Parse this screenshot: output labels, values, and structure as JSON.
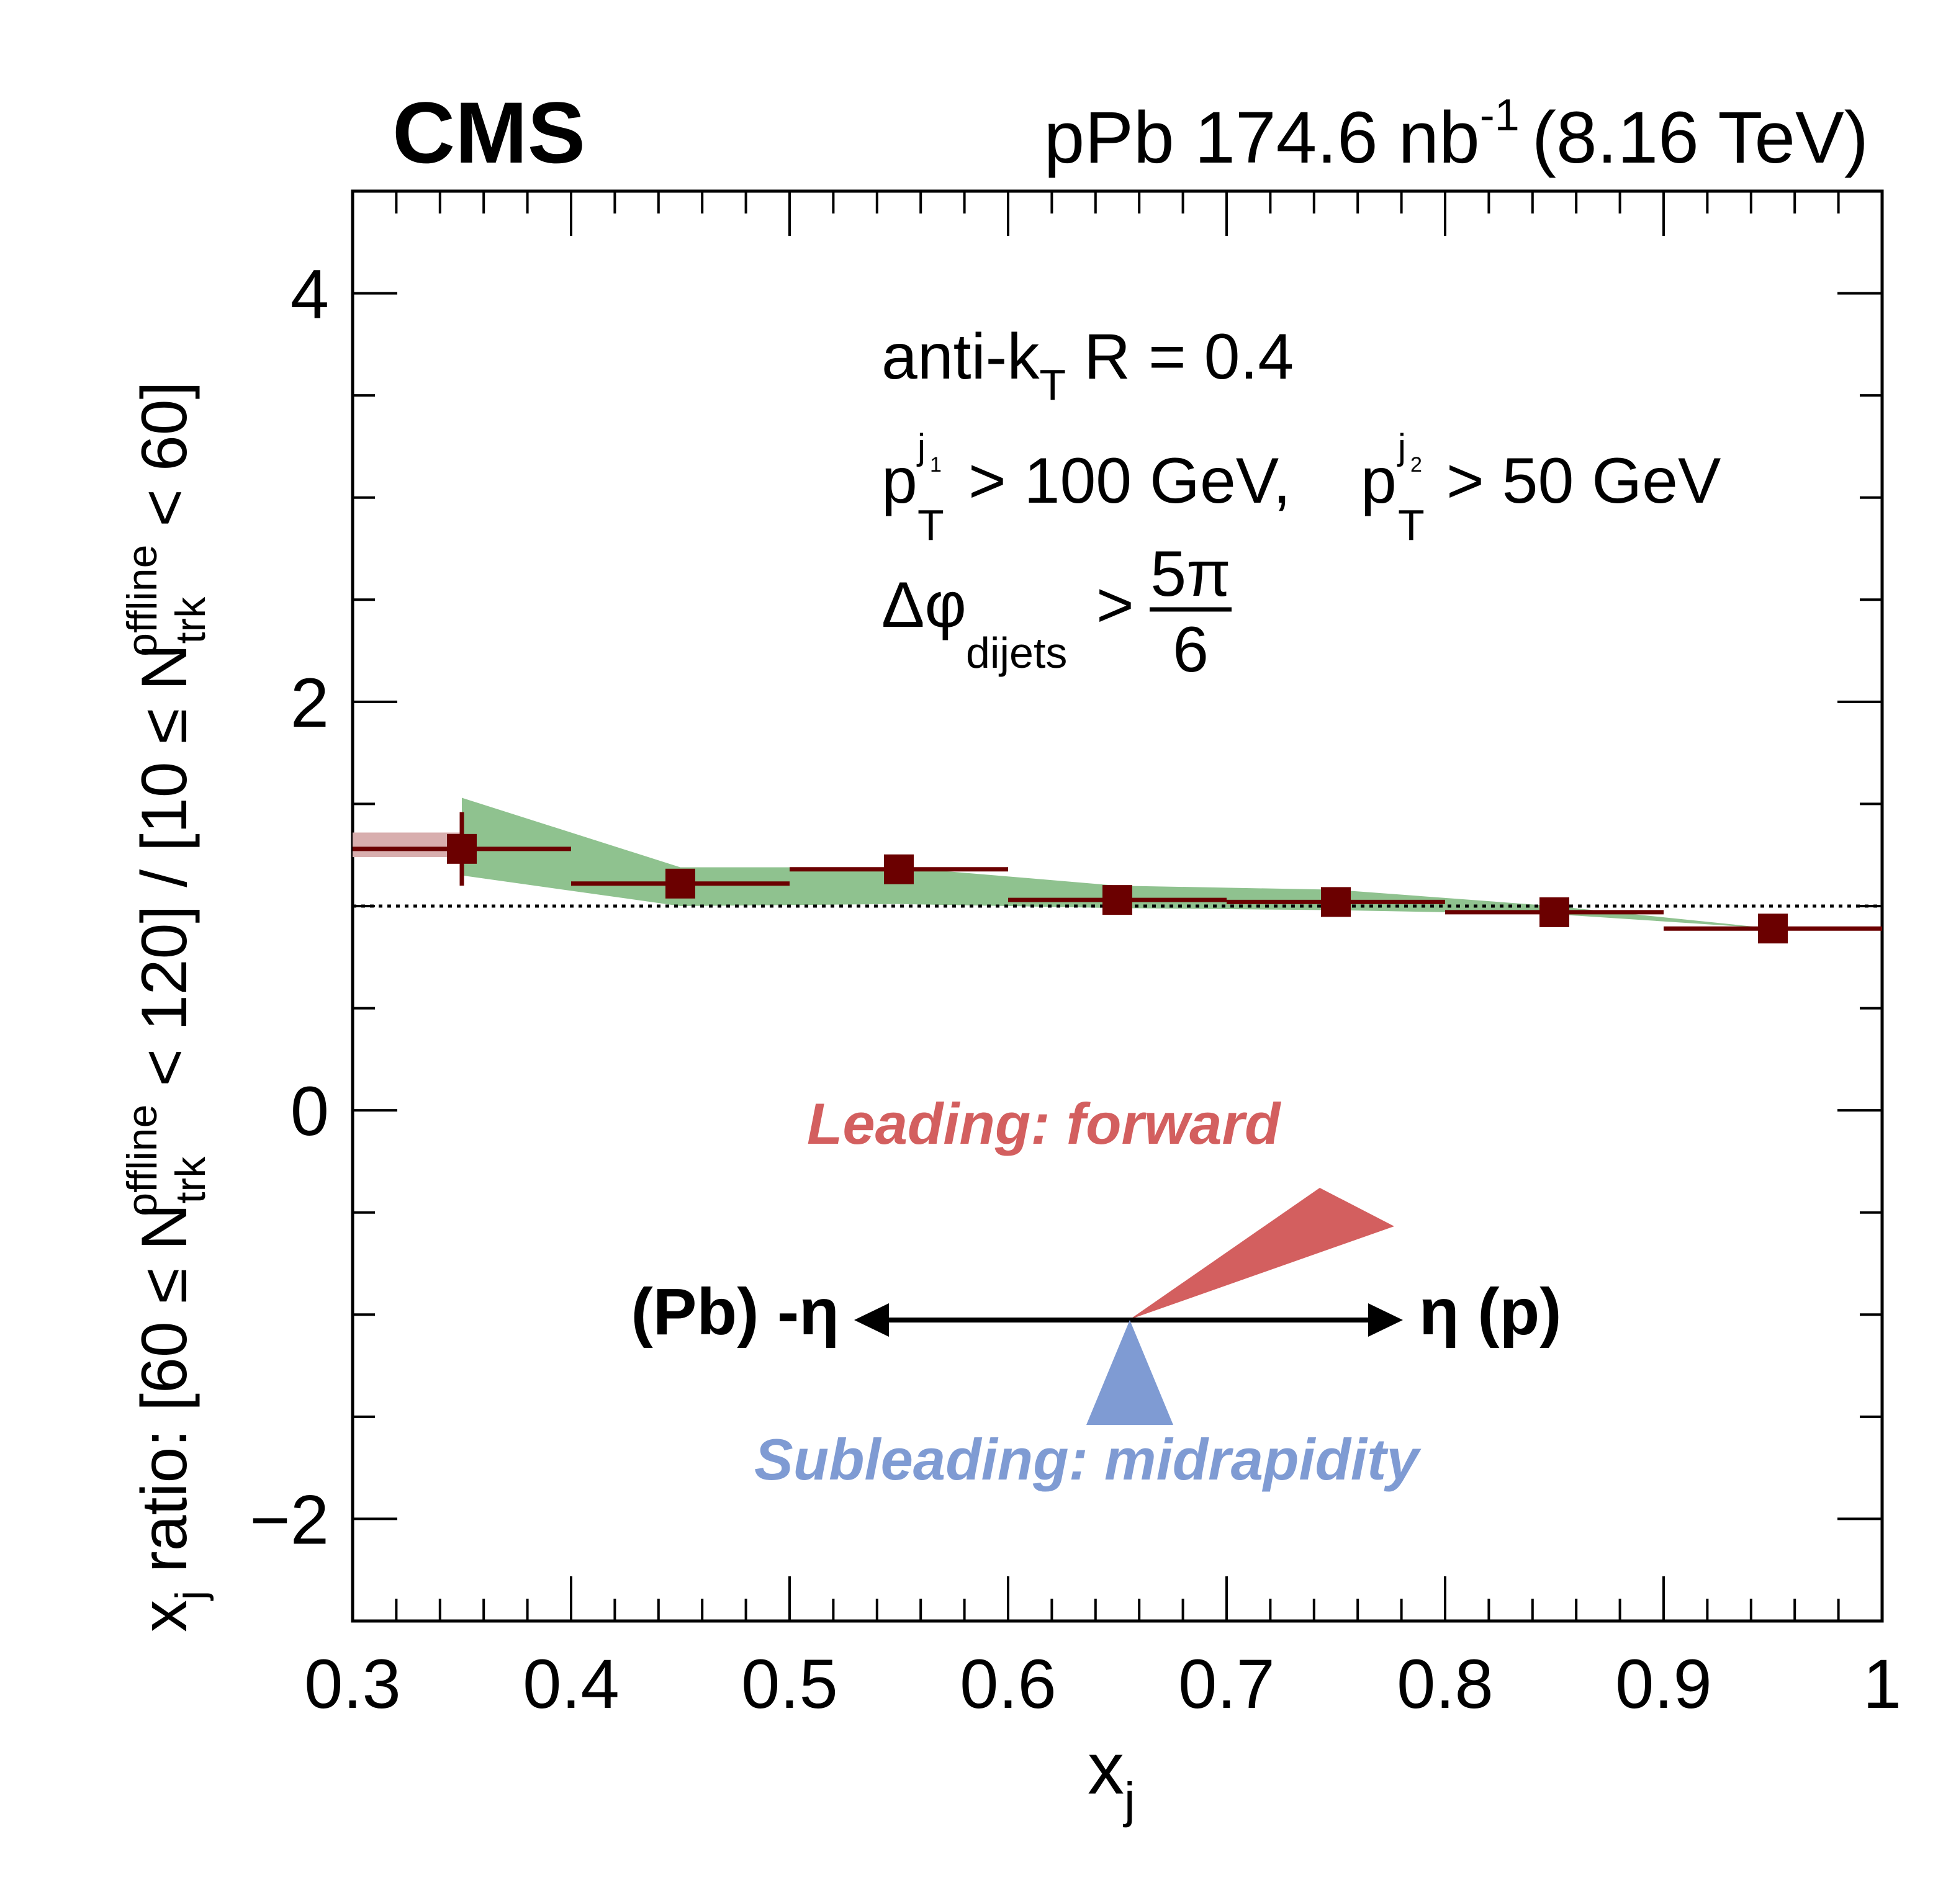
{
  "header": {
    "experiment": "CMS",
    "lumi_prefix": "pPb 174.6 nb",
    "lumi_exp": "-1",
    "energy": "(8.16 TeV)"
  },
  "info": {
    "jet_algo": "anti-k",
    "jet_algo_sub": "T",
    "jet_R": " R = 0.4",
    "p": "p",
    "T": "T",
    "j": "j",
    "one": "1",
    "two": "2",
    "cut_lead": "> 100 GeV, ",
    "cut_sub": "> 50 GeV",
    "dphi": "Δφ",
    "dphi_sub": "dijets",
    "gt": ">",
    "frac_num": "5π",
    "frac_den": "6"
  },
  "diagram": {
    "leading_label": "Leading: forward",
    "subleading_label": "Subleading: midrapidity",
    "left_label": "(Pb) -η",
    "right_label": "η (p)",
    "leading_color": "#d35f5f",
    "subleading_color": "#7f9bd3"
  },
  "colors": {
    "marker": "#6b0000",
    "syst_band": "#8fc28f",
    "first_bin_band": "#d8aeae"
  },
  "chart_data": {
    "type": "scatter",
    "xlabel_main": "x",
    "xlabel_sub": "j",
    "ylabel": {
      "x": "x",
      "j": "j",
      "ratio": " ratio: [60 ≤ N",
      "sub1": "trk",
      "sup1": "offline",
      "mid": " < 120] / [10 ≤ N",
      "sub2": "trk",
      "sup2": "offline",
      "end": " < 60]"
    },
    "xlim": [
      0.3,
      1.0
    ],
    "ylim": [
      -2.5,
      4.5
    ],
    "x_ticks": [
      "0.3",
      "0.4",
      "0.5",
      "0.6",
      "0.7",
      "0.8",
      "0.9",
      "1"
    ],
    "y_ticks": [
      "−2",
      "0",
      "2",
      "4"
    ],
    "reference_line": 1.0,
    "series": [
      {
        "x": [
          0.35,
          0.45,
          0.55,
          0.65,
          0.75,
          0.85,
          0.95
        ],
        "x_bin_low": [
          0.3,
          0.4,
          0.5,
          0.6,
          0.7,
          0.8,
          0.9
        ],
        "x_bin_high": [
          0.4,
          0.5,
          0.6,
          0.7,
          0.8,
          0.9,
          1.0
        ],
        "y": [
          1.28,
          1.11,
          1.18,
          1.03,
          1.02,
          0.97,
          0.89
        ],
        "y_stat_err": [
          0.18,
          0.04,
          0.03,
          0.02,
          0.02,
          0.02,
          0.02
        ]
      }
    ],
    "syst_band": {
      "x": [
        0.35,
        0.45,
        0.55,
        0.65,
        0.75,
        0.85,
        0.95
      ],
      "low": [
        1.15,
        1.0,
        1.01,
        0.99,
        0.98,
        0.96,
        0.89
      ],
      "high": [
        1.53,
        1.19,
        1.19,
        1.1,
        1.08,
        1.0,
        0.89
      ]
    },
    "first_bin_box": {
      "x_low": 0.3,
      "x_high": 0.4,
      "low": 1.24,
      "high": 1.36
    }
  }
}
